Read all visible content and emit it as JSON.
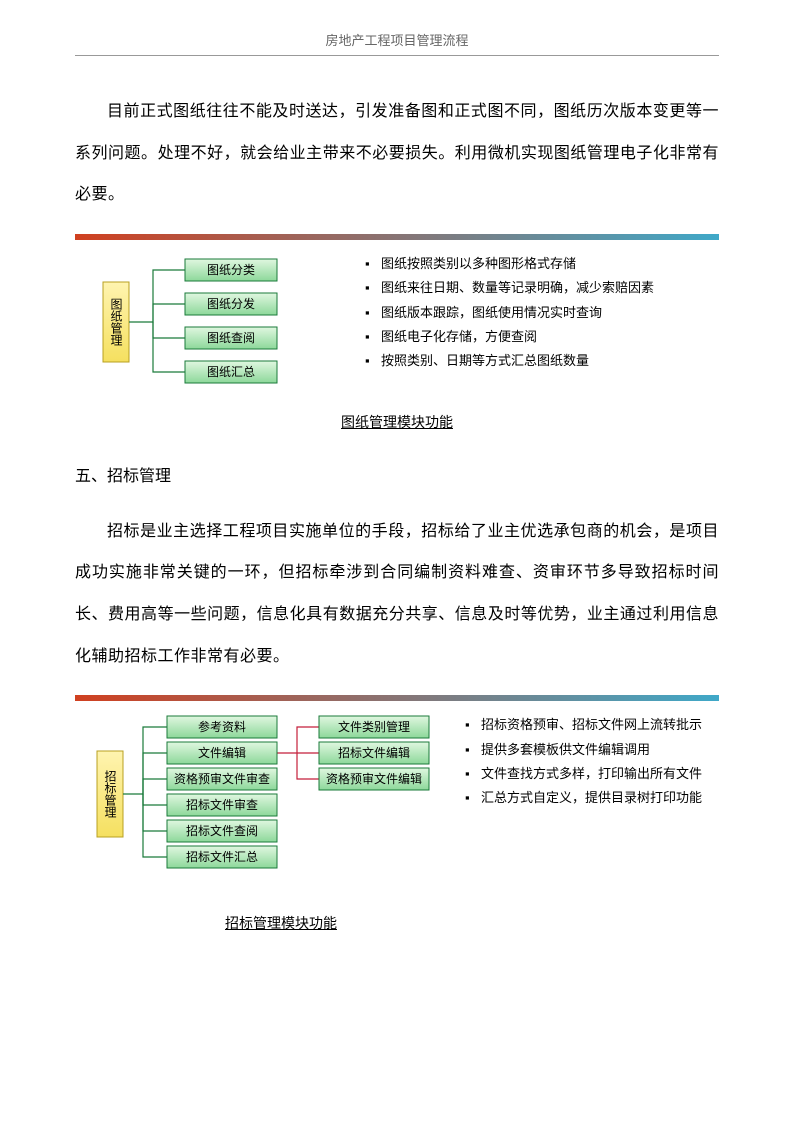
{
  "header": "房地产工程项目管理流程",
  "paragraph1": "目前正式图纸往往不能及时送达，引发准备图和正式图不同，图纸历次版本变更等一系列问题。处理不好，就会给业主带来不必要损失。利用微机实现图纸管理电子化非常有必要。",
  "diagram1": {
    "rule_from": "#d04020",
    "rule_to": "#3fa8c8",
    "root_bg_from": "#fff4b0",
    "root_bg_to": "#f5e060",
    "node_bg_from": "#d8f5d8",
    "node_bg_to": "#7ed090",
    "node_border": "#1a7a3a",
    "root": "图纸管理",
    "nodes": [
      "图纸分类",
      "图纸分发",
      "图纸查阅",
      "图纸汇总"
    ],
    "bullets": [
      "图纸按照类别以多种图形格式存储",
      "图纸来往日期、数量等记录明确，减少索赔因素",
      "图纸版本跟踪，图纸使用情况实时查询",
      "图纸电子化存储，方便查阅",
      "按照类别、日期等方式汇总图纸数量"
    ],
    "caption": "图纸管理模块功能"
  },
  "section5_title": "五、招标管理",
  "paragraph2": "招标是业主选择工程项目实施单位的手段，招标给了业主优选承包商的机会，是项目成功实施非常关键的一环，但招标牵涉到合同编制资料难查、资审环节多导致招标时间长、费用高等一些问题，信息化具有数据充分共享、信息及时等优势，业主通过利用信息化辅助招标工作非常有必要。",
  "diagram2": {
    "rule_from": "#d04020",
    "rule_to": "#3fa8c8",
    "root": "招标管理",
    "nodes": [
      "参考资料",
      "文件编辑",
      "资格预审文件审查",
      "招标文件审查",
      "招标文件查阅",
      "招标文件汇总"
    ],
    "subnodes": [
      "文件类别管理",
      "招标文件编辑",
      "资格预审文件编辑"
    ],
    "bullets": [
      "招标资格预审、招标文件网上流转批示",
      "提供多套模板供文件编辑调用",
      "文件查找方式多样，打印输出所有文件",
      "汇总方式自定义，提供目录树打印功能"
    ],
    "caption": "招标管理模块功能"
  }
}
